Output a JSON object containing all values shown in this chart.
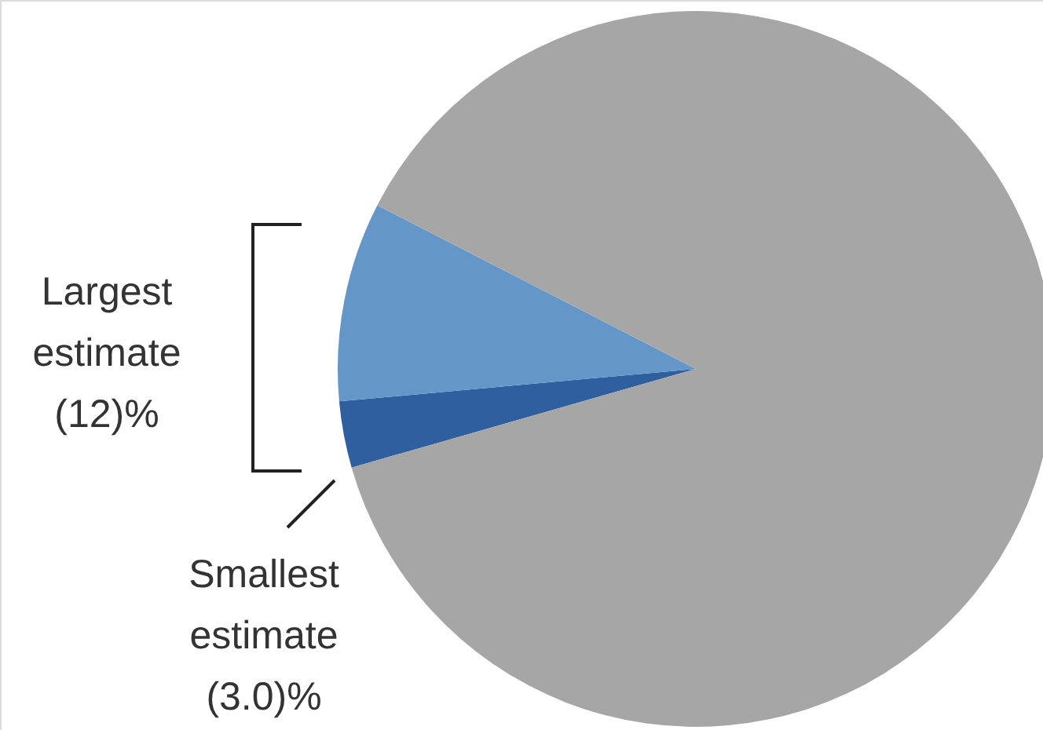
{
  "chart_data": {
    "type": "pie",
    "categories": [
      null,
      null,
      null
    ],
    "values": [
      3.0,
      9,
      88
    ],
    "colors": [
      "#2f5f9e",
      "#6496c8",
      "#a6a6a6"
    ],
    "annotations": [
      "Largest estimate (12)%",
      "Smallest estimate (3.0)%"
    ]
  }
}
